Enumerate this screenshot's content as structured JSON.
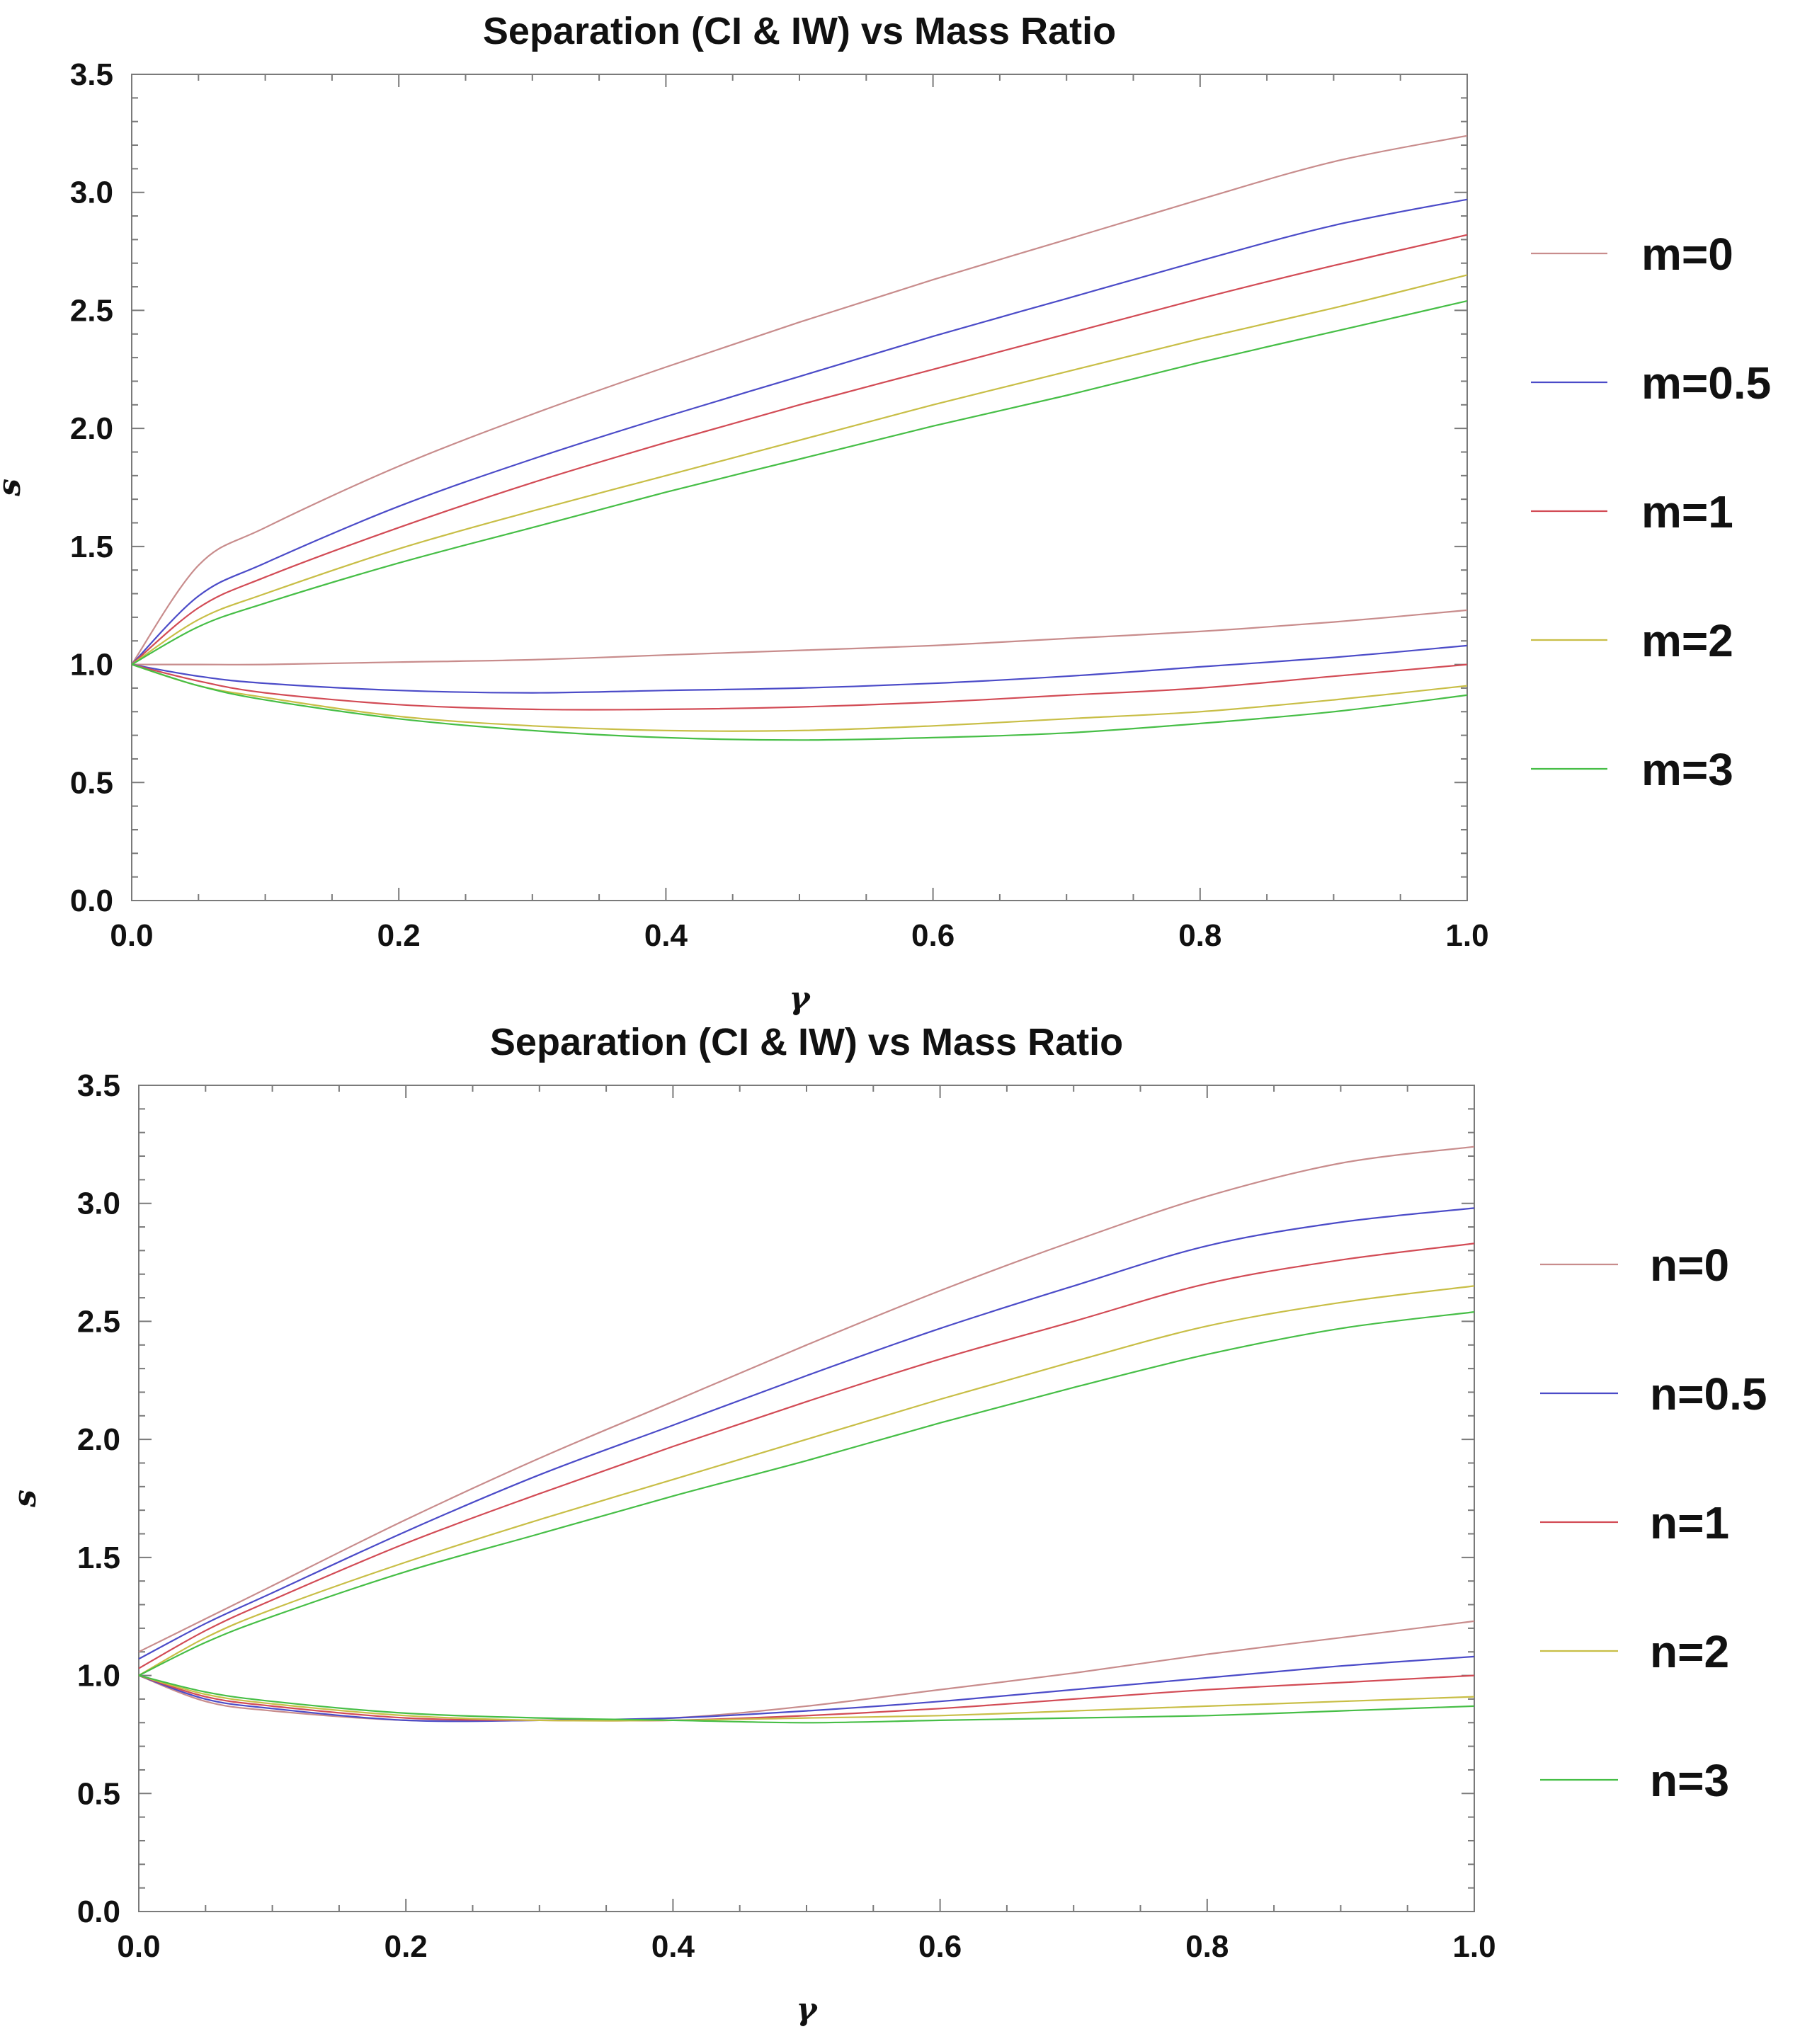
{
  "chart_data": [
    {
      "type": "line",
      "title": "Separation (CI & IW) vs Mass Ratio",
      "xlabel": "γ",
      "ylabel": "s",
      "xlim": [
        0,
        1
      ],
      "ylim": [
        0,
        3.5
      ],
      "xticks": [
        "0.0",
        "0.2",
        "0.4",
        "0.6",
        "0.8",
        "1.0"
      ],
      "yticks": [
        "0.0",
        "0.5",
        "1.0",
        "1.5",
        "2.0",
        "2.5",
        "3.0",
        "3.5"
      ],
      "legend_position": "right",
      "x": [
        0,
        0.05,
        0.1,
        0.2,
        0.3,
        0.4,
        0.5,
        0.6,
        0.7,
        0.8,
        0.9,
        1.0
      ],
      "series": [
        {
          "name": "m=0",
          "color": "#c88c8c",
          "upper": [
            1.0,
            1.42,
            1.58,
            1.84,
            2.06,
            2.26,
            2.45,
            2.63,
            2.8,
            2.97,
            3.13,
            3.24
          ],
          "lower": [
            1.0,
            1.0,
            1.0,
            1.01,
            1.02,
            1.04,
            1.06,
            1.08,
            1.11,
            1.14,
            1.18,
            1.23
          ]
        },
        {
          "name": "m=0.5",
          "color": "#4b4bc8",
          "upper": [
            1.0,
            1.29,
            1.43,
            1.67,
            1.87,
            2.05,
            2.22,
            2.39,
            2.55,
            2.71,
            2.86,
            2.97
          ],
          "lower": [
            1.0,
            0.95,
            0.92,
            0.89,
            0.88,
            0.89,
            0.9,
            0.92,
            0.95,
            0.99,
            1.03,
            1.08
          ]
        },
        {
          "name": "m=1",
          "color": "#d24b55",
          "upper": [
            1.0,
            1.24,
            1.37,
            1.58,
            1.77,
            1.94,
            2.1,
            2.25,
            2.4,
            2.55,
            2.69,
            2.82
          ],
          "lower": [
            1.0,
            0.93,
            0.88,
            0.83,
            0.81,
            0.81,
            0.82,
            0.84,
            0.87,
            0.9,
            0.95,
            1.0
          ]
        },
        {
          "name": "m=2",
          "color": "#c8be46",
          "upper": [
            1.0,
            1.19,
            1.3,
            1.49,
            1.65,
            1.8,
            1.95,
            2.1,
            2.24,
            2.38,
            2.51,
            2.65
          ],
          "lower": [
            1.0,
            0.91,
            0.86,
            0.78,
            0.74,
            0.72,
            0.72,
            0.74,
            0.77,
            0.8,
            0.85,
            0.91
          ]
        },
        {
          "name": "m=3",
          "color": "#46be46",
          "upper": [
            1.0,
            1.16,
            1.26,
            1.43,
            1.58,
            1.73,
            1.87,
            2.01,
            2.14,
            2.28,
            2.41,
            2.54
          ],
          "lower": [
            1.0,
            0.91,
            0.85,
            0.77,
            0.72,
            0.69,
            0.68,
            0.69,
            0.71,
            0.75,
            0.8,
            0.87
          ]
        }
      ]
    },
    {
      "type": "line",
      "title": "Separation (CI & IW) vs Mass Ratio",
      "xlabel": "γ",
      "ylabel": "s",
      "xlim": [
        0,
        1
      ],
      "ylim": [
        0,
        3.5
      ],
      "xticks": [
        "0.0",
        "0.2",
        "0.4",
        "0.6",
        "0.8",
        "1.0"
      ],
      "yticks": [
        "0.0",
        "0.5",
        "1.0",
        "1.5",
        "2.0",
        "2.5",
        "3.0",
        "3.5"
      ],
      "legend_position": "right",
      "x": [
        0,
        0.05,
        0.1,
        0.2,
        0.3,
        0.4,
        0.5,
        0.6,
        0.7,
        0.8,
        0.9,
        1.0
      ],
      "series": [
        {
          "name": "n=0",
          "color": "#c88c8c",
          "upper": [
            1.1,
            1.24,
            1.38,
            1.66,
            1.92,
            2.16,
            2.4,
            2.63,
            2.84,
            3.03,
            3.17,
            3.24
          ],
          "lower": [
            1.0,
            0.89,
            0.85,
            0.81,
            0.81,
            0.82,
            0.87,
            0.94,
            1.01,
            1.09,
            1.16,
            1.23
          ]
        },
        {
          "name": "n=0.5",
          "color": "#4b4bc8",
          "upper": [
            1.07,
            1.22,
            1.35,
            1.61,
            1.85,
            2.06,
            2.27,
            2.47,
            2.65,
            2.82,
            2.92,
            2.98
          ],
          "lower": [
            1.0,
            0.9,
            0.86,
            0.81,
            0.81,
            0.82,
            0.85,
            0.89,
            0.94,
            0.99,
            1.04,
            1.08
          ]
        },
        {
          "name": "n=1",
          "color": "#d24b55",
          "upper": [
            1.03,
            1.19,
            1.32,
            1.56,
            1.77,
            1.97,
            2.16,
            2.34,
            2.5,
            2.66,
            2.76,
            2.83
          ],
          "lower": [
            1.0,
            0.91,
            0.87,
            0.82,
            0.81,
            0.81,
            0.83,
            0.86,
            0.9,
            0.94,
            0.97,
            1.0
          ]
        },
        {
          "name": "n=2",
          "color": "#c8be46",
          "upper": [
            1.0,
            1.16,
            1.28,
            1.48,
            1.66,
            1.83,
            2.0,
            2.17,
            2.33,
            2.48,
            2.58,
            2.65
          ],
          "lower": [
            1.0,
            0.92,
            0.88,
            0.83,
            0.81,
            0.81,
            0.82,
            0.83,
            0.85,
            0.87,
            0.89,
            0.91
          ]
        },
        {
          "name": "n=3",
          "color": "#46be46",
          "upper": [
            1.0,
            1.14,
            1.25,
            1.44,
            1.6,
            1.76,
            1.91,
            2.07,
            2.22,
            2.36,
            2.47,
            2.54
          ],
          "lower": [
            1.0,
            0.93,
            0.89,
            0.84,
            0.82,
            0.81,
            0.8,
            0.81,
            0.82,
            0.83,
            0.85,
            0.87
          ]
        }
      ]
    }
  ]
}
